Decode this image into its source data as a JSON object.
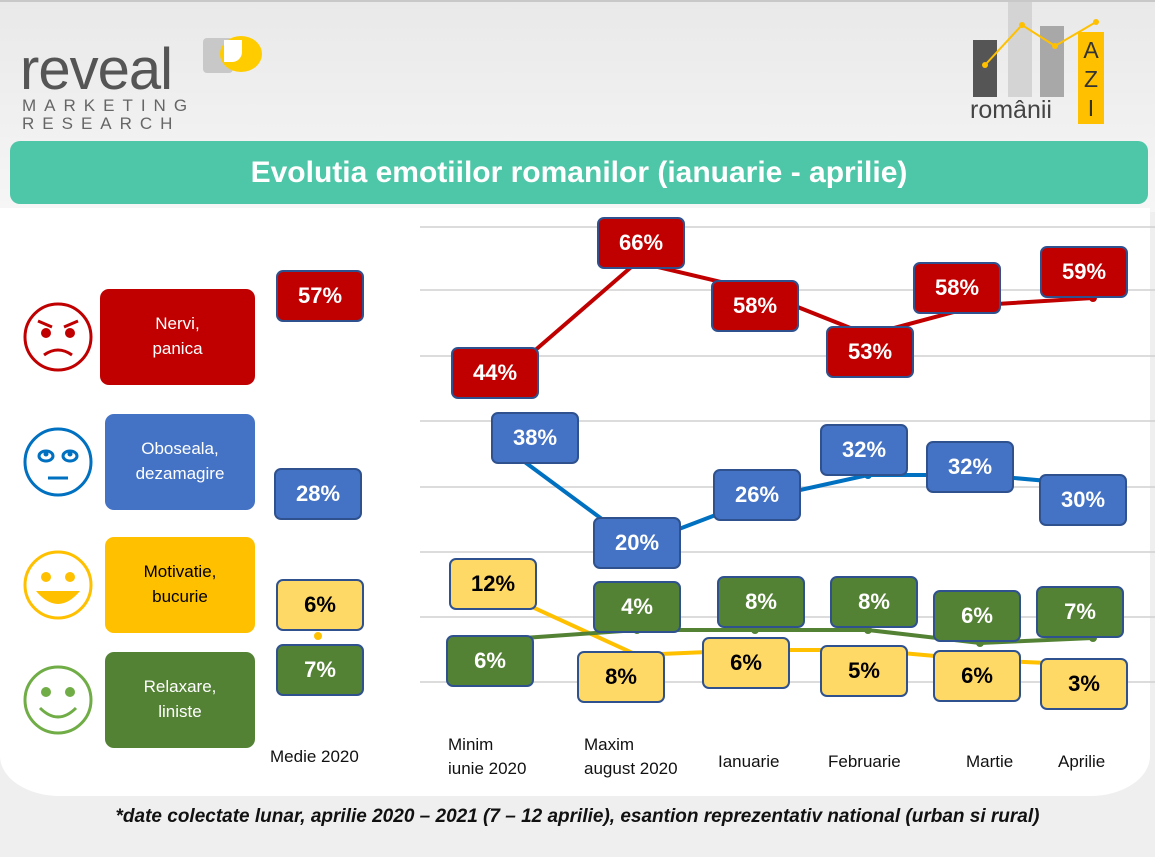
{
  "header": {
    "logo_left": {
      "word": "reveal",
      "line1": "MARKETING",
      "line2": "RESEARCH"
    },
    "logo_right": {
      "word": "românii",
      "letters": "AZI"
    }
  },
  "title": "Evolutia emotiilor romanilor (ianuarie - aprilie)",
  "footnote": "*date colectate lunar, aprilie 2020 – 2021 (7 – 12 aprilie), esantion reprezentativ national (urban si rural)",
  "colors": {
    "red": "#c00000",
    "blue": "#4472c4",
    "yellow": "#ffc000",
    "green": "#548235",
    "teal": "#4ec6a8"
  },
  "categories": [
    {
      "line1": "Nervi,",
      "line2": "panica",
      "icon": "angry-face-icon"
    },
    {
      "line1": "Oboseala,",
      "line2": "dezamagire",
      "icon": "tired-face-icon"
    },
    {
      "line1": "Motivatie,",
      "line2": "bucurie",
      "icon": "happy-face-icon"
    },
    {
      "line1": "Relaxare,",
      "line2": "liniste",
      "icon": "smile-face-icon"
    }
  ],
  "chart_data": {
    "type": "line",
    "categories": [
      "Medie 2020",
      "Minim iunie 2020",
      "Maxim august 2020",
      "Ianuarie",
      "Februarie",
      "Martie",
      "Aprilie"
    ],
    "x_labels": [
      [
        "Medie 2020"
      ],
      [
        "Minim",
        "iunie 2020"
      ],
      [
        "Maxim",
        "august 2020"
      ],
      [
        "Ianuarie"
      ],
      [
        "Februarie"
      ],
      [
        "Martie"
      ],
      [
        "Aprilie"
      ]
    ],
    "unit": "%",
    "series": [
      {
        "name": "Nervi, panica",
        "values": [
          57,
          44,
          66,
          58,
          53,
          58,
          59
        ]
      },
      {
        "name": "Oboseala, dezamagire",
        "values": [
          28,
          38,
          20,
          26,
          32,
          32,
          30
        ]
      },
      {
        "name": "Motivatie, bucurie",
        "values": [
          6,
          12,
          8,
          6,
          5,
          6,
          3
        ]
      },
      {
        "name": "Relaxare, liniste",
        "values": [
          7,
          6,
          4,
          8,
          8,
          6,
          7
        ]
      }
    ],
    "grid": true
  }
}
